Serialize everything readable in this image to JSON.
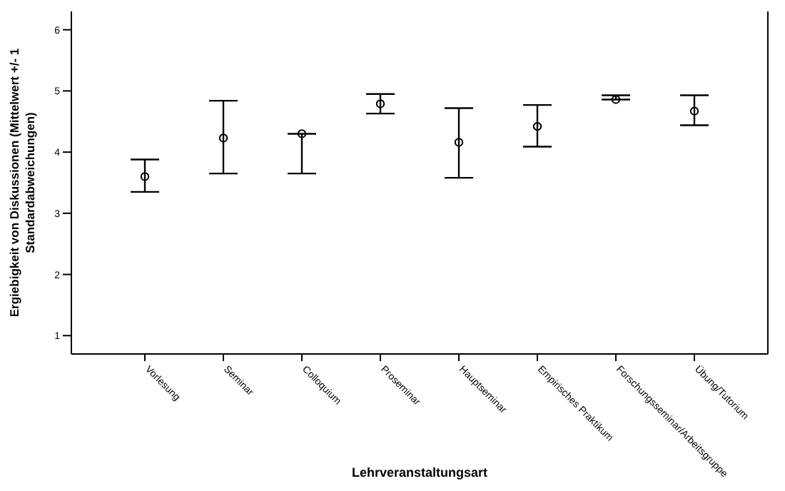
{
  "chart_data": {
    "type": "scatter",
    "xlabel": "Lehrveranstaltungsart",
    "ylabel": "Ergiebigkeit von Diskussionen (Mittelwert +/- 1 Standardabweichungen)",
    "categories": [
      "Vorlesung",
      "Seminar",
      "Colloquium",
      "Proseminar",
      "Hauptseminar",
      "Empirisches Praktikum",
      "Forschungsseminar/Arbeitsgruppe",
      "Übung/Tutorium"
    ],
    "series": [
      {
        "color": "#000000",
        "values": [
          3.6,
          4.23,
          4.3,
          4.79,
          4.16,
          4.42,
          4.86,
          4.67
        ],
        "errors": [
          [
            3.35,
            3.88
          ],
          [
            3.65,
            4.84
          ],
          [
            3.65,
            4.3
          ],
          [
            4.63,
            4.95
          ],
          [
            3.58,
            4.72
          ],
          [
            4.09,
            4.77
          ],
          [
            4.86,
            4.93
          ],
          [
            4.44,
            4.93
          ]
        ]
      }
    ],
    "ylim": [
      0.7,
      6.3
    ],
    "yticks": [
      1,
      2,
      3,
      4,
      5,
      6
    ],
    "marker": "circle",
    "grid": false,
    "legend": false
  }
}
